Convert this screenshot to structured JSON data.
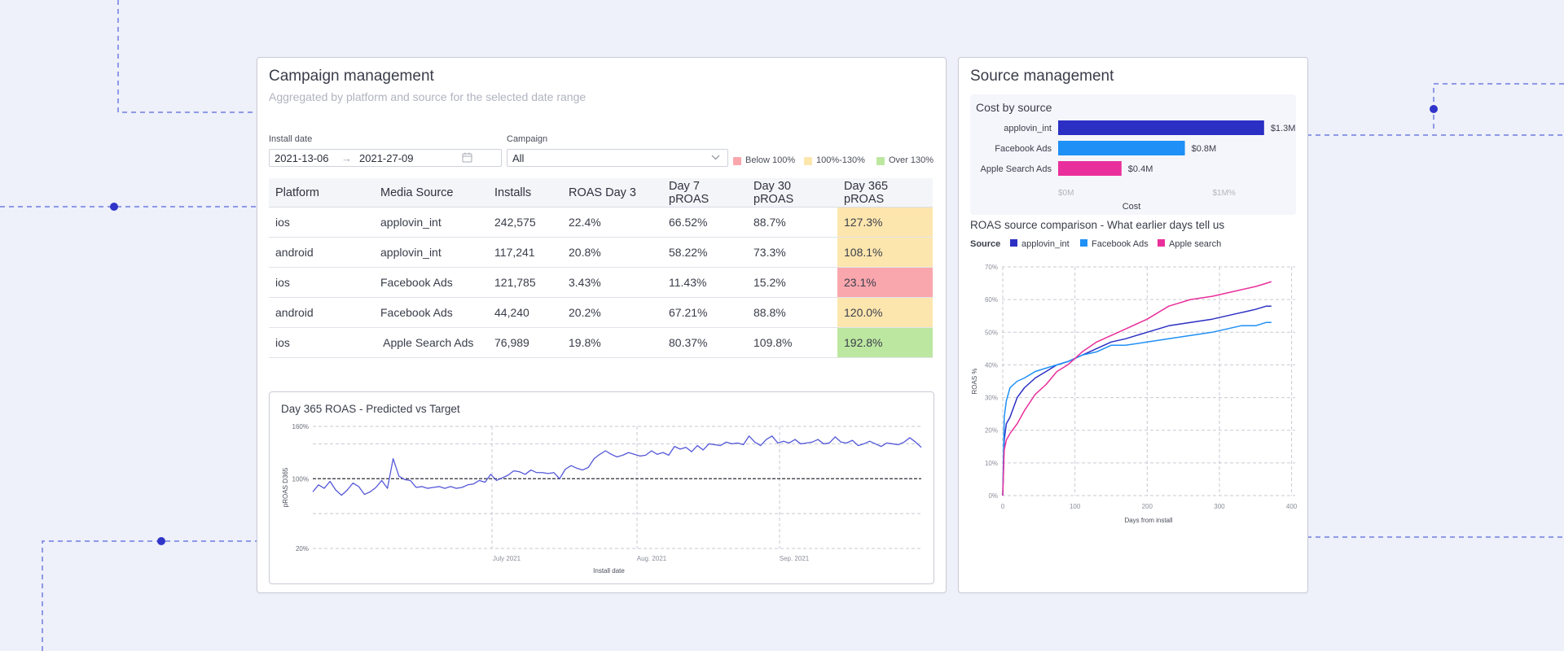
{
  "campaign": {
    "title": "Campaign management",
    "subtitle": "Aggregated by platform and source for the selected date range",
    "install_date_label": "Install date",
    "date_start": "2021-13-06",
    "date_arrow": "→",
    "date_end": "2021-27-09",
    "campaign_label": "Campaign",
    "campaign_value": "All",
    "legend": [
      {
        "label": "Below 100%",
        "color": "#f9a7ad"
      },
      {
        "label": "100%-130%",
        "color": "#fde6ae"
      },
      {
        "label": "Over 130%",
        "color": "#bce7a0"
      }
    ],
    "table": {
      "columns": [
        "Platform",
        "Media Source",
        "Installs",
        "ROAS Day 3",
        "Day 7 pROAS",
        "Day 30 pROAS",
        "Day 365 pROAS"
      ],
      "rows": [
        [
          "ios",
          "applovin_int",
          "242,575",
          "22.4%",
          "66.52%",
          "88.7%",
          "127.3%"
        ],
        [
          "android",
          "applovin_int",
          "117,241",
          "20.8%",
          "58.22%",
          "73.3%",
          "108.1%"
        ],
        [
          "ios",
          "Facebook Ads",
          "121,785",
          "3.43%",
          "11.43%",
          "15.2%",
          "23.1%"
        ],
        [
          "android",
          "Facebook Ads",
          "44,240",
          "20.2%",
          "67.21%",
          "88.8%",
          "120.0%"
        ],
        [
          "ios",
          " Apple Search Ads",
          "76,989",
          "19.8%",
          "80.37%",
          "109.8%",
          "192.8%"
        ]
      ]
    }
  },
  "source": {
    "title": "Source management",
    "cost_title": "Cost by source"
  },
  "chart_data": [
    {
      "type": "line",
      "title": "Day 365 ROAS -  Predicted vs Target",
      "xlabel": "Install date",
      "ylabel": "pROAS D365",
      "yticks": [
        "160%",
        "100%",
        "20%"
      ],
      "ylim": [
        20,
        160
      ],
      "xticks": [
        "July 2021",
        "Aug. 2021",
        "Sep. 2021"
      ],
      "target": 100,
      "grid": true,
      "line_color": "#5458d8",
      "series": [
        {
          "values": [
            85,
            93,
            89,
            97,
            87,
            81,
            87,
            95,
            91,
            82,
            85,
            90,
            98,
            89,
            123,
            103,
            99,
            98,
            90,
            91,
            89,
            90,
            91,
            89,
            91,
            89,
            90,
            93,
            94,
            98,
            96,
            105,
            98,
            101,
            104,
            109,
            108,
            105,
            110,
            107,
            107,
            106,
            107,
            100,
            111,
            115,
            112,
            110,
            113,
            123,
            128,
            132,
            128,
            125,
            127,
            130,
            128,
            126,
            127,
            132,
            128,
            130,
            127,
            137,
            134,
            136,
            131,
            138,
            133,
            140,
            139,
            138,
            142,
            140,
            141,
            139,
            149,
            142,
            138,
            145,
            149,
            141,
            143,
            141,
            145,
            140,
            141,
            142,
            145,
            140,
            141,
            148,
            142,
            141,
            144,
            138,
            140,
            143,
            140,
            137,
            141,
            140,
            139,
            142,
            147,
            142,
            136
          ]
        }
      ]
    },
    {
      "type": "bar",
      "orientation": "horizontal",
      "title": "Cost by source",
      "xlabel": "Cost",
      "xticks": [
        "$0M",
        "$1M%"
      ],
      "xlim": [
        0,
        1.45
      ],
      "categories": [
        "applovin_int",
        "Facebook Ads",
        "Apple Search Ads"
      ],
      "values": [
        1.3,
        0.8,
        0.4
      ],
      "labels": [
        "$1.3M",
        "$0.8M",
        "$0.4M"
      ],
      "colors": [
        "#2c2fc4",
        "#1f90f5",
        "#e92f9b"
      ]
    },
    {
      "type": "line",
      "title": "ROAS source comparison - What earlier days tell us",
      "legend_title": "Source",
      "xlabel": "Days from install",
      "ylabel": "ROAS %",
      "xlim": [
        0,
        400
      ],
      "ylim": [
        0,
        70
      ],
      "xticks": [
        0,
        100,
        200,
        300,
        400
      ],
      "yticks": [
        "70%",
        "60%",
        "50%",
        "40%",
        "30%",
        "20%",
        "10%",
        "0%"
      ],
      "grid": true,
      "series": [
        {
          "name": "applovin_int",
          "color": "#2c2fc4",
          "x": [
            0,
            2,
            5,
            10,
            20,
            30,
            45,
            60,
            75,
            90,
            110,
            130,
            150,
            170,
            200,
            230,
            260,
            290,
            310,
            330,
            350,
            365,
            372
          ],
          "y": [
            0,
            17,
            22,
            24,
            30,
            33,
            36,
            38,
            40,
            41,
            43,
            45,
            47,
            48,
            50,
            52,
            53,
            54,
            55,
            56,
            57,
            58,
            58
          ]
        },
        {
          "name": "Facebook Ads",
          "color": "#1f90f5",
          "x": [
            0,
            2,
            5,
            10,
            20,
            30,
            45,
            60,
            75,
            90,
            110,
            130,
            150,
            170,
            200,
            230,
            260,
            290,
            310,
            330,
            350,
            365,
            372
          ],
          "y": [
            0,
            24,
            29,
            33,
            35,
            36,
            38,
            39,
            40,
            41,
            43,
            44,
            46,
            46,
            47,
            48,
            49,
            50,
            51,
            52,
            52,
            53,
            53
          ]
        },
        {
          "name": "Apple search",
          "color": "#e92f9b",
          "x": [
            0,
            2,
            5,
            10,
            20,
            30,
            45,
            60,
            75,
            90,
            110,
            130,
            150,
            170,
            200,
            230,
            260,
            290,
            310,
            330,
            350,
            365,
            372
          ],
          "y": [
            0,
            14,
            17,
            19,
            22,
            26,
            31,
            34,
            38,
            40,
            44,
            47,
            49,
            51,
            54,
            58,
            60,
            61,
            62,
            63,
            64,
            65,
            65.5
          ]
        }
      ]
    }
  ]
}
